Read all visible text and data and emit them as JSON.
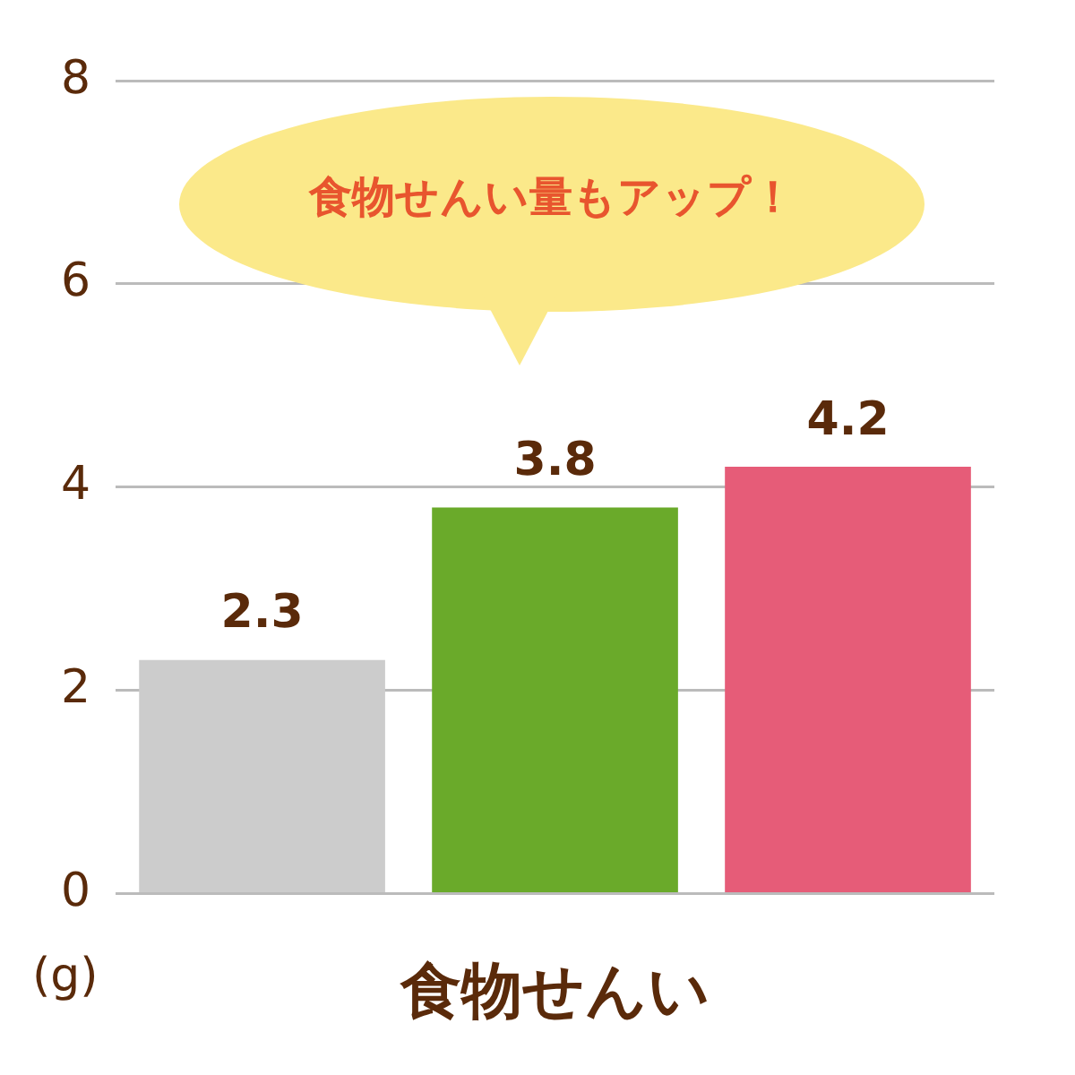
{
  "chart_data": {
    "type": "bar",
    "xlabel": "食物せんい",
    "ylabel": "(g)",
    "annotations": [
      "食物せんい量もアップ！"
    ],
    "categories": [
      null,
      null,
      null
    ],
    "values": [
      2.3,
      3.8,
      4.2
    ],
    "colors": [
      "#cccccc",
      "#6aaa2a",
      "#e65c78"
    ],
    "ylim": [
      0,
      8
    ],
    "yticks": [
      0,
      2,
      4,
      6,
      8
    ],
    "grid": "y",
    "legend": false,
    "data_labels": true
  }
}
